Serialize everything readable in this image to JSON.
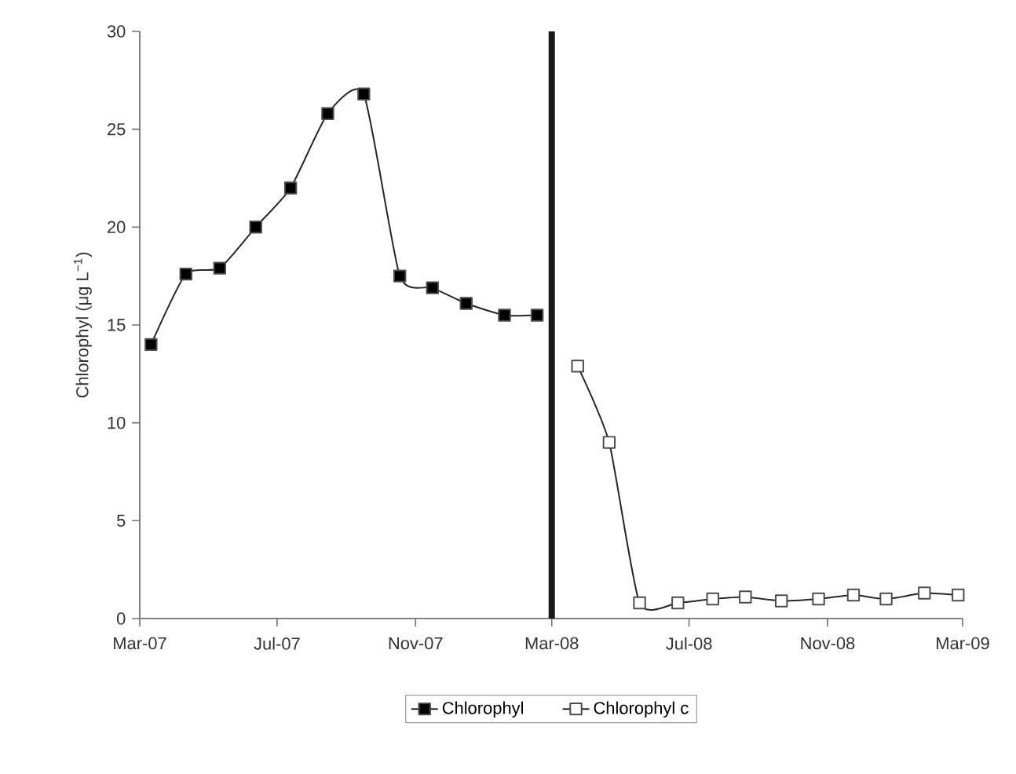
{
  "chart_data": {
    "type": "line",
    "ylabel": "Chlorophyl (μg L$^{−1}$)",
    "series": [
      {
        "name": "Chlorophyl",
        "color": "#000000",
        "x": [
          "2007-03-11",
          "2007-04-11",
          "2007-05-11",
          "2007-06-12",
          "2007-07-13",
          "2007-08-15",
          "2007-09-16",
          "2007-10-18",
          "2007-11-16",
          "2007-12-16",
          "2008-01-19",
          "2008-02-17"
        ],
        "values": [
          14.0,
          17.6,
          17.9,
          20.0,
          22.0,
          25.8,
          26.8,
          17.5,
          16.9,
          16.1,
          15.5,
          15.5
        ]
      },
      {
        "name": "Chlorophyl c",
        "color": "#ffffff",
        "x": [
          "2008-03-24",
          "2008-04-21",
          "2008-05-18",
          "2008-06-21",
          "2008-07-22",
          "2008-08-20",
          "2008-09-21",
          "2008-10-24",
          "2008-11-24",
          "2008-12-23",
          "2009-01-26",
          "2009-02-25"
        ],
        "values": [
          12.9,
          9.0,
          0.8,
          0.8,
          1.0,
          1.1,
          0.9,
          1.0,
          1.2,
          1.0,
          1.3,
          1.2
        ]
      }
    ],
    "xlim": [
      "2007-03-01",
      "2009-03-01"
    ],
    "xticks": [
      {
        "value": "2007-03-01",
        "label": "Mar-07"
      },
      {
        "value": "2007-07-01",
        "label": "Jul-07"
      },
      {
        "value": "2007-11-01",
        "label": "Nov-07"
      },
      {
        "value": "2008-03-01",
        "label": "Mar-08"
      },
      {
        "value": "2008-07-01",
        "label": "Jul-08"
      },
      {
        "value": "2008-11-01",
        "label": "Nov-08"
      },
      {
        "value": "2009-03-01",
        "label": "Mar-09"
      }
    ],
    "ylim": [
      0,
      30
    ],
    "yticks": [
      0,
      5,
      10,
      15,
      20,
      25,
      30
    ],
    "ref_lines": [
      {
        "axis": "x",
        "value": "2008-03-01",
        "color": "#1a1a1a"
      }
    ],
    "grid": false,
    "legend": "bottom",
    "marker": "square",
    "line_style": "solid"
  }
}
